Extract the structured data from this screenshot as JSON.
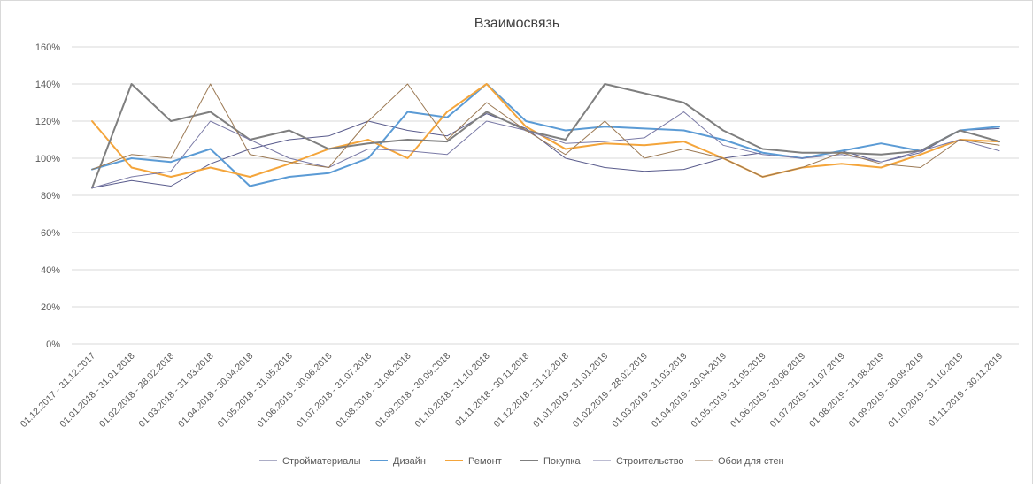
{
  "chart_data": {
    "type": "line",
    "title": "Взаимосвязь",
    "xlabel": "",
    "ylabel": "",
    "ylim": [
      0,
      1.6
    ],
    "yticks": [
      "0%",
      "20%",
      "40%",
      "60%",
      "80%",
      "100%",
      "120%",
      "140%",
      "160%"
    ],
    "grid": true,
    "legend_position": "bottom",
    "categories": [
      "01.12.2017 - 31.12.2017",
      "01.01.2018 - 31.01.2018",
      "01.02.2018 - 28.02.2018",
      "01.03.2018 - 31.03.2018",
      "01.04.2018 - 30.04.2018",
      "01.05.2018 - 31.05.2018",
      "01.06.2018 - 30.06.2018",
      "01.07.2018 - 31.07.2018",
      "01.08.2018 - 31.08.2018",
      "01.09.2018 - 30.09.2018",
      "01.10.2018 - 31.10.2018",
      "01.11.2018 - 30.11.2018",
      "01.12.2018 - 31.12.2018",
      "01.01.2019 - 31.01.2019",
      "01.02.2019 - 28.02.2019",
      "01.03.2019 - 31.03.2019",
      "01.04.2019 - 30.04.2019",
      "01.05.2019 - 31.05.2019",
      "01.06.2019 - 30.06.2019",
      "01.07.2019 - 31.07.2019",
      "01.08.2019 - 31.08.2019",
      "01.09.2019 - 30.09.2019",
      "01.10.2019 - 31.10.2019",
      "01.11.2019 - 30.11.2019"
    ],
    "series": [
      {
        "name": "Стройматериалы",
        "color": "#595b8c",
        "width": 1,
        "values": [
          0.84,
          0.88,
          0.85,
          0.97,
          1.05,
          1.1,
          1.12,
          1.2,
          1.15,
          1.12,
          1.24,
          1.16,
          1.0,
          0.95,
          0.93,
          0.94,
          1.0,
          1.03,
          1.0,
          1.04,
          0.98,
          1.03,
          1.15,
          1.16
        ]
      },
      {
        "name": "Дизайн",
        "color": "#5b9bd5",
        "width": 2,
        "values": [
          0.94,
          1.0,
          0.98,
          1.05,
          0.85,
          0.9,
          0.92,
          1.0,
          1.25,
          1.22,
          1.4,
          1.2,
          1.15,
          1.17,
          1.16,
          1.15,
          1.1,
          1.03,
          1.0,
          1.04,
          1.08,
          1.04,
          1.15,
          1.17
        ]
      },
      {
        "name": "Ремонт",
        "color": "#f4a53b",
        "width": 2,
        "values": [
          1.2,
          0.95,
          0.9,
          0.95,
          0.9,
          0.97,
          1.05,
          1.1,
          1.0,
          1.25,
          1.4,
          1.17,
          1.05,
          1.08,
          1.07,
          1.09,
          1.0,
          0.9,
          0.95,
          0.97,
          0.95,
          1.02,
          1.1,
          1.09
        ]
      },
      {
        "name": "Покупка",
        "color": "#7f7f7f",
        "width": 2,
        "values": [
          0.84,
          1.4,
          1.2,
          1.25,
          1.1,
          1.15,
          1.05,
          1.08,
          1.1,
          1.09,
          1.25,
          1.15,
          1.1,
          1.4,
          1.35,
          1.3,
          1.15,
          1.05,
          1.03,
          1.03,
          1.02,
          1.04,
          1.15,
          1.09
        ]
      },
      {
        "name": "Строительство",
        "color": "#7a7aa6",
        "width": 1,
        "values": [
          0.84,
          0.9,
          0.93,
          1.2,
          1.1,
          1.0,
          0.95,
          1.05,
          1.04,
          1.02,
          1.2,
          1.15,
          1.08,
          1.09,
          1.11,
          1.25,
          1.07,
          1.02,
          1.0,
          1.02,
          0.98,
          1.04,
          1.1,
          1.04
        ]
      },
      {
        "name": "Обои для стен",
        "color": "#9c7a55",
        "width": 1,
        "values": [
          0.94,
          1.02,
          1.0,
          1.4,
          1.02,
          0.98,
          0.95,
          1.2,
          1.4,
          1.1,
          1.3,
          1.15,
          1.02,
          1.2,
          1.0,
          1.05,
          1.0,
          0.9,
          0.95,
          1.03,
          0.97,
          0.95,
          1.1,
          1.07
        ]
      }
    ]
  }
}
